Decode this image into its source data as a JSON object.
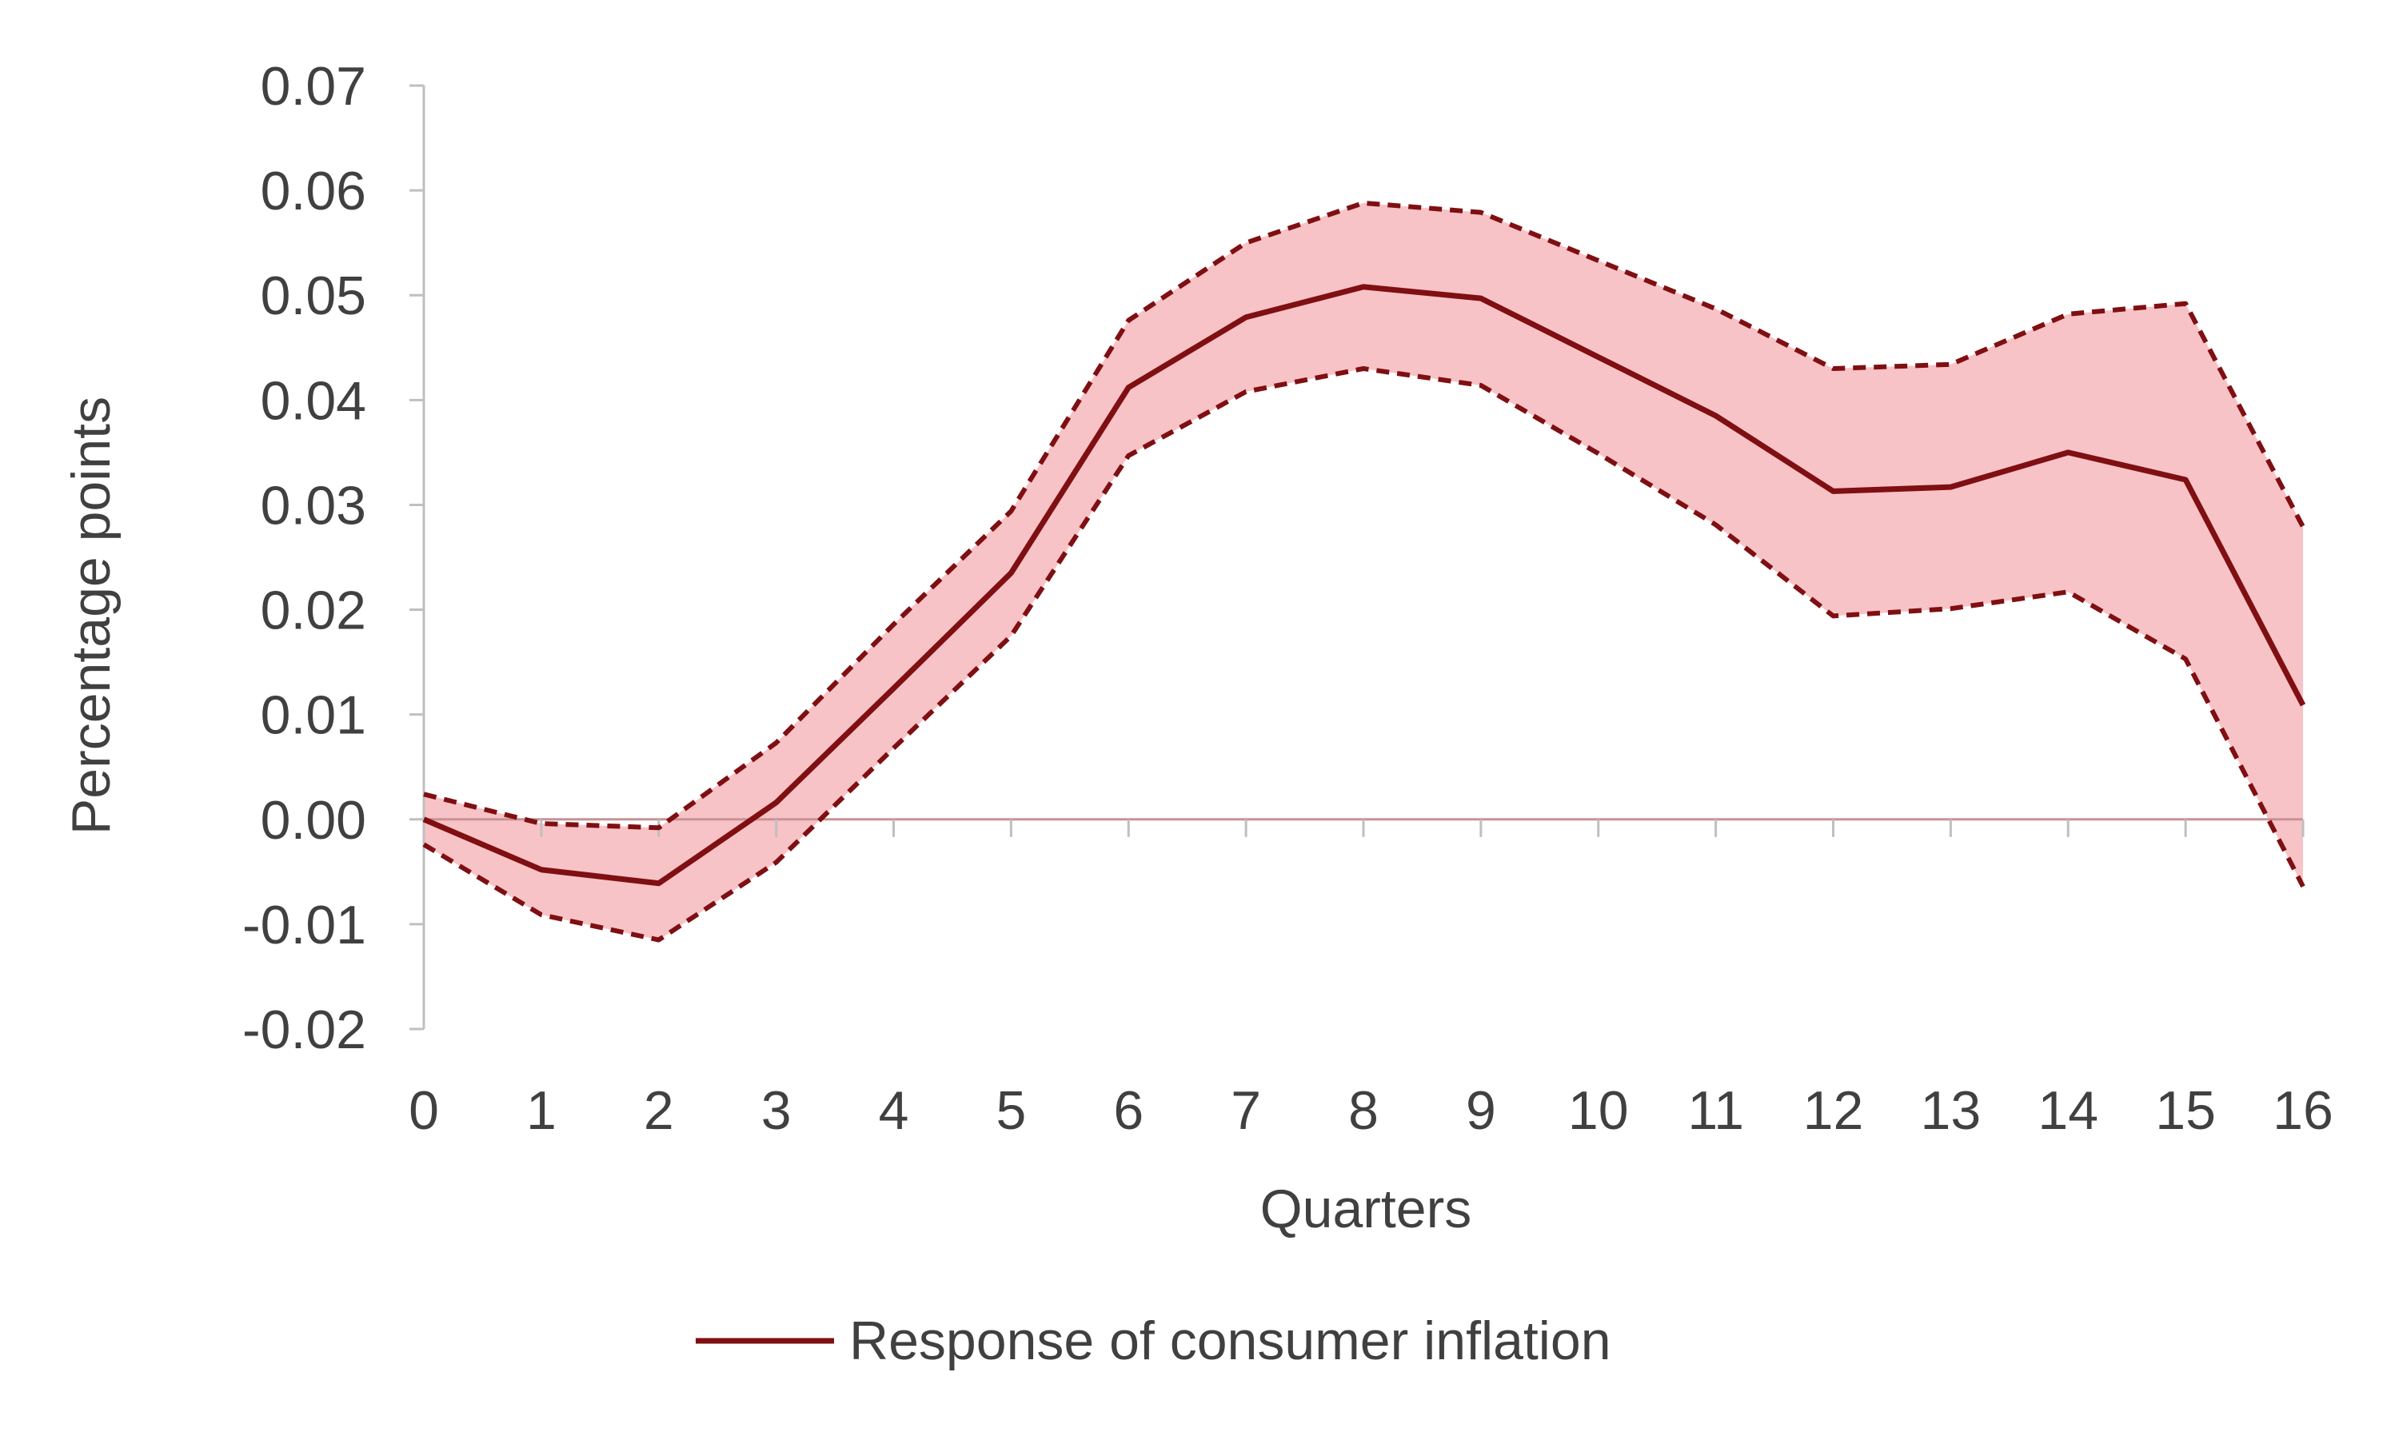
{
  "chart_data": {
    "type": "line",
    "title": "",
    "xlabel": "Quarters",
    "ylabel": "Percentage points",
    "x": [
      0,
      1,
      2,
      3,
      4,
      5,
      6,
      7,
      8,
      9,
      10,
      11,
      12,
      13,
      14,
      15,
      16
    ],
    "x_tick_labels": [
      "0",
      "1",
      "2",
      "3",
      "4",
      "5",
      "6",
      "7",
      "8",
      "9",
      "10",
      "11",
      "12",
      "13",
      "14",
      "15",
      "16"
    ],
    "y_tick_labels": [
      "0.07",
      "0.06",
      "0.05",
      "0.04",
      "0.03",
      "0.02",
      "0.01",
      "0.00",
      "-0.01",
      "-0.02"
    ],
    "ylim": [
      -0.02,
      0.07
    ],
    "grid": false,
    "legend_position": "bottom-center",
    "series": [
      {
        "name": "Response of consumer inflation",
        "style": "solid",
        "values": [
          0.0,
          -0.0048,
          -0.0061,
          0.0016,
          0.0125,
          0.0235,
          0.0412,
          0.0479,
          0.0508,
          0.0497,
          0.0441,
          0.0385,
          0.0313,
          0.0317,
          0.035,
          0.0324,
          0.0109
        ]
      },
      {
        "style": "dashed",
        "role": "upper-band",
        "values": [
          0.0024,
          -0.0004,
          -0.0008,
          0.0073,
          0.0186,
          0.0294,
          0.0476,
          0.055,
          0.0588,
          0.0579,
          0.0533,
          0.0487,
          0.043,
          0.0434,
          0.0482,
          0.0492,
          0.0279
        ]
      },
      {
        "style": "dashed",
        "role": "lower-band",
        "values": [
          -0.0024,
          -0.0091,
          -0.0115,
          -0.0041,
          0.0068,
          0.0175,
          0.0347,
          0.0408,
          0.043,
          0.0414,
          0.0349,
          0.0281,
          0.0194,
          0.0201,
          0.0217,
          0.0153,
          -0.0064
        ]
      }
    ],
    "colors": {
      "line": "#7f0f12",
      "band_fill": "#f8c3c6",
      "axis": "#bfbfbf",
      "zero_line": "#c79295",
      "text": "#404040"
    }
  }
}
